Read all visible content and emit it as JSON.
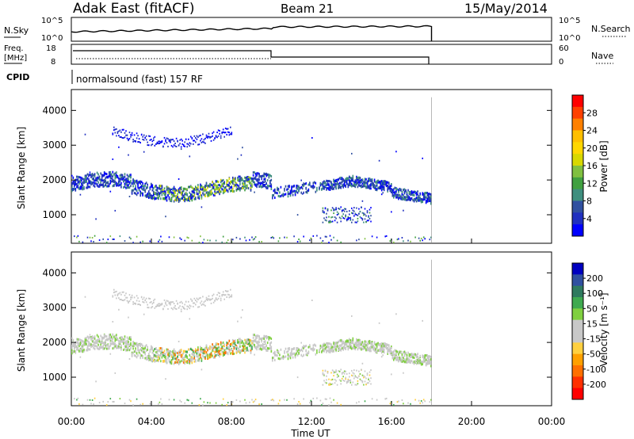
{
  "header": {
    "title": "Adak East (fitACF)",
    "beam": "Beam 21",
    "date": "15/May/2014"
  },
  "nsky_panel": {
    "left_label": "N.Sky",
    "right_label": "N.Search",
    "tick_top": "10^5",
    "tick_bottom": "10^0",
    "right_tick_top": "10^5",
    "right_tick_bottom": "10^0"
  },
  "freq_panel": {
    "left_label_1": "Freq.",
    "left_label_2": "[MHz]",
    "right_label": "Nave",
    "left_tick_top": "18",
    "left_tick_bottom": "8",
    "right_tick_top": "60",
    "right_tick_bottom": "0"
  },
  "cpid": {
    "label": "CPID",
    "value": "normalsound (fast) 157 RF"
  },
  "power_panel": {
    "ylabel": "Slant Range [km]",
    "cbar_label": "Power [dB]",
    "cbar_ticks": [
      "28",
      "24",
      "20",
      "16",
      "12",
      "8",
      "4"
    ],
    "cbar_colors": [
      "#ff0000",
      "#ff4000",
      "#ff8000",
      "#ffbf00",
      "#ffd700",
      "#d8d800",
      "#80c040",
      "#40a040",
      "#3f8f7f",
      "#3050a0",
      "#2030c0",
      "#0000ff"
    ]
  },
  "velocity_panel": {
    "ylabel": "Slant Range [km]",
    "cbar_label": "Velocity [m s⁻¹]",
    "cbar_ticks": [
      "200",
      "100",
      "50",
      "15",
      "-15",
      "-50",
      "-100",
      "-200"
    ],
    "cbar_colors": [
      "#0000c0",
      "#3050a0",
      "#2f7a5f",
      "#3faa50",
      "#80d040",
      "#c8c8c8",
      "#c8c8c8",
      "#ffd040",
      "#ffa000",
      "#ff7000",
      "#ff3000",
      "#ff0000"
    ]
  },
  "x_axis": {
    "label": "Time UT",
    "ticks": [
      "00:00",
      "04:00",
      "08:00",
      "12:00",
      "16:00",
      "20:00",
      "00:00"
    ]
  },
  "y_axis": {
    "ticks": [
      "4000",
      "3000",
      "2000",
      "1000"
    ]
  },
  "chart_data": {
    "type": "heatmap",
    "title": "Adak East (fitACF)",
    "xlabel": "Time UT",
    "ylabel": "Slant Range [km]",
    "xlim_hours": [
      0,
      24
    ],
    "ylim_km": [
      180,
      4600
    ],
    "data_extent_hours": [
      0,
      18
    ],
    "frequency_mhz": [
      {
        "from_h": 0,
        "to_h": 10,
        "value": 15
      },
      {
        "from_h": 10,
        "to_h": 18,
        "value": 13
      }
    ],
    "echo_regions": [
      {
        "name": "main band",
        "from_h": 0,
        "to_h": 10,
        "range_km": [
          1500,
          2300
        ]
      },
      {
        "name": "upper patch",
        "from_h": 2,
        "to_h": 8,
        "range_km": [
          2800,
          3600
        ]
      },
      {
        "name": "post-midday band",
        "from_h": 10,
        "to_h": 18,
        "range_km": [
          1300,
          2600
        ]
      },
      {
        "name": "lower patch",
        "from_h": 12.5,
        "to_h": 15,
        "range_km": [
          750,
          1300
        ]
      }
    ],
    "power_colorbar_db": [
      4,
      8,
      12,
      16,
      20,
      24,
      28
    ],
    "velocity_colorbar_ms": [
      -200,
      -100,
      -50,
      -15,
      15,
      50,
      100,
      200
    ]
  }
}
